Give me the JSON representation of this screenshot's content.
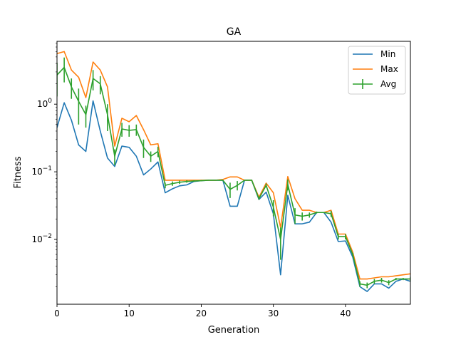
{
  "chart_data": {
    "type": "line",
    "title": "GA",
    "xlabel": "Generation",
    "ylabel": "Fitness",
    "yscale": "log",
    "xlim": [
      0,
      49
    ],
    "ylim": [
      0.0011,
      8.5
    ],
    "grid": false,
    "legend_position": "top-right",
    "x_ticks": [
      0,
      10,
      20,
      30,
      40
    ],
    "y_ticks": [
      {
        "value": 0.01,
        "label": "10",
        "exp": "−2"
      },
      {
        "value": 0.1,
        "label": "10",
        "exp": "−1"
      },
      {
        "value": 1,
        "label": "10",
        "exp": "0"
      }
    ],
    "x": [
      0,
      1,
      2,
      3,
      4,
      5,
      6,
      7,
      8,
      9,
      10,
      11,
      12,
      13,
      14,
      15,
      16,
      17,
      18,
      19,
      20,
      21,
      22,
      23,
      24,
      25,
      26,
      27,
      28,
      29,
      30,
      31,
      32,
      33,
      34,
      35,
      36,
      37,
      38,
      39,
      40,
      41,
      42,
      43,
      44,
      45,
      46,
      47,
      48,
      49
    ],
    "series": [
      {
        "name": "Min",
        "color": "#1f77b4",
        "values": [
          0.45,
          1.05,
          0.58,
          0.25,
          0.2,
          1.12,
          0.4,
          0.16,
          0.12,
          0.24,
          0.23,
          0.17,
          0.09,
          0.11,
          0.14,
          0.049,
          0.056,
          0.062,
          0.064,
          0.072,
          0.074,
          0.075,
          0.075,
          0.075,
          0.031,
          0.031,
          0.075,
          0.075,
          0.039,
          0.05,
          0.024,
          0.003,
          0.045,
          0.017,
          0.017,
          0.018,
          0.025,
          0.025,
          0.018,
          0.0093,
          0.0095,
          0.0055,
          0.002,
          0.0017,
          0.0022,
          0.0022,
          0.0019,
          0.0024,
          0.0026,
          0.0024
        ]
      },
      {
        "name": "Max",
        "color": "#ff7f0e",
        "values": [
          5.6,
          6.0,
          3.2,
          2.5,
          1.25,
          4.2,
          3.2,
          1.8,
          0.24,
          0.62,
          0.55,
          0.68,
          0.42,
          0.25,
          0.26,
          0.075,
          0.075,
          0.075,
          0.075,
          0.075,
          0.075,
          0.075,
          0.075,
          0.077,
          0.084,
          0.084,
          0.075,
          0.075,
          0.042,
          0.068,
          0.049,
          0.015,
          0.085,
          0.04,
          0.027,
          0.027,
          0.025,
          0.025,
          0.027,
          0.012,
          0.012,
          0.0065,
          0.0026,
          0.0026,
          0.0027,
          0.0028,
          0.0028,
          0.0029,
          0.003,
          0.0031
        ]
      },
      {
        "name": "Avg",
        "color": "#2ca02c",
        "values": [
          2.7,
          3.5,
          1.8,
          1.1,
          0.7,
          2.4,
          2.0,
          0.7,
          0.17,
          0.43,
          0.41,
          0.42,
          0.23,
          0.17,
          0.2,
          0.063,
          0.067,
          0.07,
          0.072,
          0.073,
          0.074,
          0.075,
          0.075,
          0.075,
          0.055,
          0.063,
          0.075,
          0.075,
          0.04,
          0.063,
          0.03,
          0.01,
          0.065,
          0.023,
          0.022,
          0.023,
          0.025,
          0.025,
          0.024,
          0.011,
          0.011,
          0.006,
          0.0022,
          0.0021,
          0.0024,
          0.0025,
          0.0023,
          0.0026,
          0.0026,
          0.0026
        ],
        "error": [
          1.4,
          1.4,
          0.6,
          0.6,
          0.25,
          0.8,
          0.6,
          0.3,
          0.045,
          0.1,
          0.08,
          0.08,
          0.07,
          0.03,
          0.035,
          0.006,
          0.005,
          0.004,
          0.003,
          0.002,
          0.0015,
          0.001,
          0.0005,
          0.0005,
          0.014,
          0.01,
          0.0005,
          0.0005,
          0.0015,
          0.004,
          0.008,
          0.005,
          0.012,
          0.006,
          0.003,
          0.002,
          0.0008,
          0.0004,
          0.0025,
          0.001,
          0.001,
          0.0003,
          0.0002,
          0.0002,
          0.0002,
          0.0002,
          0.0002,
          0.0001,
          0.0001,
          0.0002
        ]
      }
    ]
  }
}
